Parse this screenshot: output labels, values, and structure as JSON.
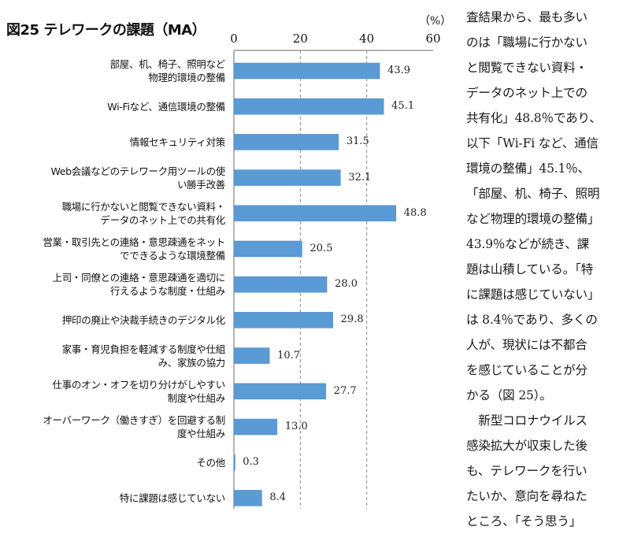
{
  "chart_data": {
    "type": "bar",
    "orientation": "horizontal",
    "title": "図25 テレワークの課題（MA）",
    "unit_label": "（%）",
    "xlim": [
      0,
      60
    ],
    "xticks": [
      "0",
      "20",
      "40",
      "60"
    ],
    "grid": "dashed-vertical",
    "bar_color": "#5b9bd5",
    "categories": [
      [
        "部屋、机、椅子、照明など",
        "物理的環境の整備"
      ],
      [
        "Wi-Fiなど、通信環境の整備"
      ],
      [
        "情報セキュリティ対策"
      ],
      [
        "Web会議などのテレワーク用ツールの使",
        "い勝手改善"
      ],
      [
        "職場に行かないと閲覧できない資料・",
        "データのネット上での共有化"
      ],
      [
        "営業・取引先との連絡・意思疎通をネット",
        "でできるような環境整備"
      ],
      [
        "上司・同僚との連絡・意思疎通を適切に",
        "行えるような制度・仕組み"
      ],
      [
        "押印の廃止や決裁手続きのデジタル化"
      ],
      [
        "家事・育児負担を軽減する制度や仕組",
        "み、家族の協力"
      ],
      [
        "仕事のオン・オフを切り分けがしやすい",
        "制度や仕組み"
      ],
      [
        "オーバーワーク（働きすぎ）を回避する制",
        "度や仕組み"
      ],
      [
        "その他"
      ],
      [
        "特に課題は感じていない"
      ]
    ],
    "values": [
      43.9,
      45.1,
      31.5,
      32.1,
      48.8,
      20.5,
      28.0,
      29.8,
      10.7,
      27.7,
      13.0,
      0.3,
      8.4
    ],
    "value_labels": [
      "43.9",
      "45.1",
      "31.5",
      "32.1",
      "48.8",
      "20.5",
      "28.0",
      "29.8",
      "10.7",
      "27.7",
      "13.0",
      "0.3",
      "8.4"
    ]
  },
  "side_text": {
    "lines": [
      "査結果から、最も多い",
      "のは「職場に行かない",
      "と閲覧できない資料・",
      "データのネット上での",
      "共有化」48.8％であり、",
      "以下「Wi-Fi など、通信",
      "環境の整備」45.1％、",
      "「部屋、机、椅子、照明",
      "など物理的環境の整備」",
      "43.9％などが続き、課",
      "題は山積している。「特",
      "に課題は感じていない」",
      "は 8.4％であり、多くの",
      "人が、現状には不都合",
      "を感じていることが分",
      "かる（図 25）。",
      "　新型コロナウイルス",
      "感染拡大が収束した後",
      "も、テレワークを行い",
      "たいか、意向を尋ねた",
      "ところ、「そう思う」"
    ]
  }
}
